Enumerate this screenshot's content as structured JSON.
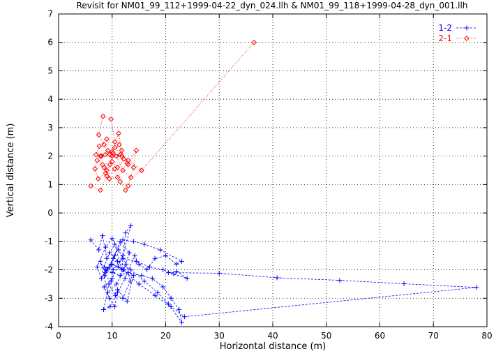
{
  "chart_data": {
    "type": "scatter",
    "title": "Revisit for NM01_99_112+1999-04-22_dyn_024.llh & NM01_99_118+1999-04-28_dyn_001.llh",
    "xlabel": "Horizontal distance (m)",
    "ylabel": "Vertical distance (m)",
    "xlim": [
      0,
      80
    ],
    "ylim": [
      -4,
      7
    ],
    "xticks": [
      "0",
      "10",
      "20",
      "30",
      "40",
      "50",
      "60",
      "70",
      "80"
    ],
    "yticks": [
      "-4",
      "-3",
      "-2",
      "-1",
      "0",
      "1",
      "2",
      "3",
      "4",
      "5",
      "6",
      "7"
    ],
    "grid": "dotted",
    "legend_position": "top-right",
    "series": [
      {
        "name": "1-2",
        "color": "#0000ff",
        "marker": "plus",
        "line": "dashed",
        "points": [
          [
            6.0,
            -0.95
          ],
          [
            7.5,
            -1.3
          ],
          [
            8.2,
            -0.8
          ],
          [
            9.0,
            -1.6
          ],
          [
            10.5,
            -1.1
          ],
          [
            11.8,
            -2.0
          ],
          [
            12.5,
            -0.7
          ],
          [
            13.5,
            -0.45
          ],
          [
            12.0,
            -1.5
          ],
          [
            10.0,
            -2.3
          ],
          [
            8.5,
            -2.6
          ],
          [
            9.5,
            -3.0
          ],
          [
            10.5,
            -3.3
          ],
          [
            11.0,
            -2.7
          ],
          [
            12.8,
            -3.1
          ],
          [
            14.0,
            -2.2
          ],
          [
            11.2,
            -1.9
          ],
          [
            9.8,
            -1.8
          ],
          [
            8.7,
            -2.1
          ],
          [
            7.8,
            -1.7
          ],
          [
            9.2,
            -2.8
          ],
          [
            10.8,
            -2.5
          ],
          [
            12.2,
            -2.0
          ],
          [
            13.2,
            -1.4
          ],
          [
            11.5,
            -1.0
          ],
          [
            10.2,
            -1.6
          ],
          [
            9.0,
            -2.0
          ],
          [
            8.0,
            -2.3
          ],
          [
            7.2,
            -1.9
          ],
          [
            8.8,
            -1.2
          ],
          [
            10.0,
            -0.9
          ],
          [
            11.2,
            -1.3
          ],
          [
            12.6,
            -1.8
          ],
          [
            13.4,
            -2.4
          ],
          [
            12.0,
            -3.0
          ],
          [
            10.6,
            -2.9
          ],
          [
            9.4,
            -2.5
          ],
          [
            8.4,
            -3.4
          ],
          [
            9.6,
            -3.3
          ],
          [
            11.0,
            -2.8
          ],
          [
            12.4,
            -2.3
          ],
          [
            14.2,
            -1.5
          ],
          [
            15.0,
            -1.8
          ],
          [
            16.5,
            -2.0
          ],
          [
            18.0,
            -1.6
          ],
          [
            20.0,
            -1.5
          ],
          [
            22.0,
            -1.8
          ],
          [
            23.0,
            -1.7
          ],
          [
            19.0,
            -1.3
          ],
          [
            16.0,
            -1.1
          ],
          [
            14.0,
            -1.0
          ],
          [
            12.0,
            -0.95
          ],
          [
            10.5,
            -1.5
          ],
          [
            9.5,
            -1.9
          ],
          [
            8.8,
            -2.0
          ],
          [
            10.0,
            -2.1
          ],
          [
            11.5,
            -2.2
          ],
          [
            13.0,
            -2.1
          ],
          [
            15.5,
            -2.2
          ],
          [
            17.5,
            -2.3
          ],
          [
            19.5,
            -2.6
          ],
          [
            21.0,
            -3.0
          ],
          [
            22.5,
            -3.4
          ],
          [
            23.0,
            -3.85
          ],
          [
            20.5,
            -3.2
          ],
          [
            18.5,
            -2.8
          ],
          [
            16.0,
            -2.4
          ],
          [
            13.5,
            -2.0
          ],
          [
            11.0,
            -1.7
          ],
          [
            9.5,
            -1.4
          ],
          [
            8.5,
            -1.9
          ],
          [
            10.2,
            -2.0
          ],
          [
            12.0,
            -1.6
          ],
          [
            14.5,
            -1.7
          ],
          [
            17.0,
            -1.9
          ],
          [
            19.5,
            -2.0
          ],
          [
            21.5,
            -2.15
          ],
          [
            24.0,
            -2.3
          ],
          [
            22.0,
            -2.05
          ],
          [
            20.5,
            -2.1
          ],
          [
            30.0,
            -2.12
          ],
          [
            40.8,
            -2.28
          ],
          [
            52.5,
            -2.37
          ],
          [
            64.5,
            -2.49
          ],
          [
            78.0,
            -2.62
          ],
          [
            23.5,
            -3.65
          ],
          [
            21.0,
            -3.3
          ],
          [
            18.0,
            -2.9
          ],
          [
            15.0,
            -2.5
          ],
          [
            12.0,
            -2.0
          ],
          [
            10.0,
            -1.8
          ],
          [
            8.6,
            -2.2
          ],
          [
            9.8,
            -2.4
          ]
        ]
      },
      {
        "name": "2-1",
        "color": "#ff0000",
        "marker": "diamond",
        "line": "dotted",
        "points": [
          [
            6.0,
            0.95
          ],
          [
            7.8,
            0.8
          ],
          [
            9.0,
            1.3
          ],
          [
            10.5,
            1.55
          ],
          [
            11.5,
            1.1
          ],
          [
            12.5,
            0.8
          ],
          [
            13.0,
            0.95
          ],
          [
            14.0,
            1.6
          ],
          [
            14.5,
            2.2
          ],
          [
            13.0,
            1.7
          ],
          [
            11.8,
            2.0
          ],
          [
            10.5,
            2.3
          ],
          [
            9.5,
            2.05
          ],
          [
            8.5,
            2.4
          ],
          [
            7.5,
            2.75
          ],
          [
            8.3,
            3.4
          ],
          [
            9.8,
            3.3
          ],
          [
            10.5,
            2.5
          ],
          [
            11.2,
            2.8
          ],
          [
            11.8,
            2.2
          ],
          [
            12.2,
            1.9
          ],
          [
            11.0,
            1.6
          ],
          [
            10.0,
            1.8
          ],
          [
            9.0,
            1.5
          ],
          [
            8.2,
            1.7
          ],
          [
            7.2,
            1.85
          ],
          [
            6.8,
            1.55
          ],
          [
            7.4,
            1.2
          ],
          [
            8.8,
            1.4
          ],
          [
            9.6,
            1.7
          ],
          [
            10.2,
            2.1
          ],
          [
            9.2,
            2.2
          ],
          [
            8.0,
            2.0
          ],
          [
            7.0,
            2.05
          ],
          [
            7.6,
            2.35
          ],
          [
            9.0,
            2.6
          ],
          [
            10.8,
            2.0
          ],
          [
            12.0,
            1.5
          ],
          [
            13.5,
            1.25
          ],
          [
            15.5,
            1.5
          ],
          [
            36.5,
            6.0
          ],
          [
            15.5,
            1.5
          ],
          [
            13.0,
            1.85
          ],
          [
            11.5,
            2.05
          ],
          [
            10.0,
            2.0
          ],
          [
            8.5,
            1.6
          ],
          [
            9.5,
            1.2
          ],
          [
            11.0,
            1.25
          ],
          [
            12.8,
            1.75
          ],
          [
            11.3,
            2.4
          ],
          [
            10.0,
            2.15
          ],
          [
            8.7,
            2.05
          ],
          [
            7.8,
            2.0
          ]
        ]
      }
    ]
  }
}
